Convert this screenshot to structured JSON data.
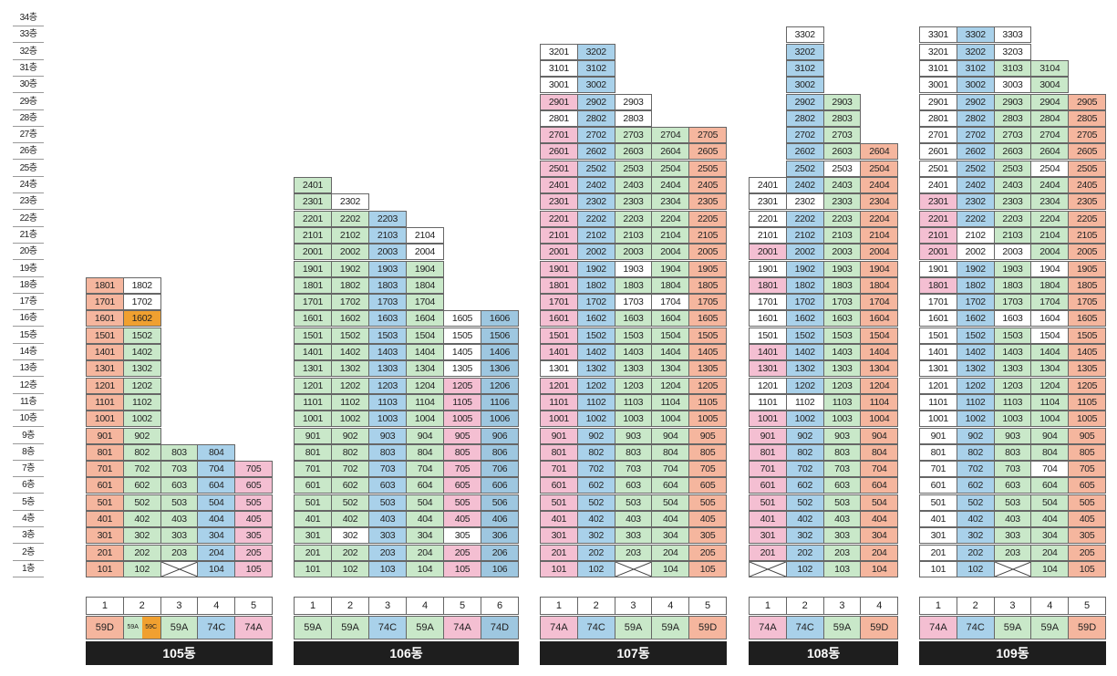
{
  "colors": {
    "59A": "#c9e8c9",
    "59C": "#f0a030",
    "59D": "#f5b69e",
    "74A": "#f4bfd2",
    "74C": "#a9d1ea",
    "empty": "#ffffff"
  },
  "floor_labels": [
    "34층",
    "33층",
    "32층",
    "31층",
    "30층",
    "29층",
    "28층",
    "27층",
    "26층",
    "25층",
    "24층",
    "23층",
    "22층",
    "21층",
    "20층",
    "19층",
    "18층",
    "17층",
    "16층",
    "15층",
    "14층",
    "13층",
    "12층",
    "11층",
    "10층",
    "9층",
    "8층",
    "7층",
    "6층",
    "5층",
    "4층",
    "3층",
    "2층",
    "1층"
  ],
  "buildings": [
    {
      "name": "105동",
      "lines": [
        "1",
        "2",
        "3",
        "4",
        "5"
      ],
      "types": [
        "59D",
        [
          "59A",
          "59C"
        ],
        "59A",
        "74C",
        "74A"
      ],
      "top": [
        18,
        18,
        8,
        8,
        7
      ],
      "empty_ground": [
        3
      ],
      "overrides": {
        "1602": "59C"
      },
      "blank": [
        "1702",
        "1802"
      ]
    },
    {
      "name": "106동",
      "lines": [
        "1",
        "2",
        "3",
        "4",
        "5",
        "6"
      ],
      "types": [
        "59A",
        "59A",
        "74C",
        "59A",
        "74A",
        "74D"
      ],
      "top": [
        24,
        23,
        22,
        21,
        16,
        16
      ],
      "empty_ground": [],
      "overrides": {},
      "blank": [
        "2302",
        "2104",
        "2004",
        "302",
        "305",
        "1605",
        "1505",
        "1405",
        "1305"
      ]
    },
    {
      "name": "107동",
      "lines": [
        "1",
        "2",
        "3",
        "4",
        "5"
      ],
      "types": [
        "74A",
        "74C",
        "59A",
        "59A",
        "59D"
      ],
      "top": [
        32,
        32,
        29,
        27,
        27
      ],
      "empty_ground": [
        3
      ],
      "overrides": {
        "2901": "74A",
        "2501": "74A",
        "1501": "74A",
        "1101": "74A"
      },
      "blank": [
        "3201",
        "3101",
        "3001",
        "2801",
        "2903",
        "2803",
        "1903",
        "1703",
        "1704",
        "1301"
      ]
    },
    {
      "name": "108동",
      "lines": [
        "1",
        "2",
        "3",
        "4"
      ],
      "types": [
        "74A",
        "74C",
        "59A",
        "59D"
      ],
      "top": [
        24,
        33,
        29,
        26
      ],
      "empty_ground": [
        1
      ],
      "overrides": {
        "2001": "74A",
        "1801": "74A",
        "1401": "74A",
        "1301": "74A",
        "1001": "74A"
      },
      "blank": [
        "3302",
        "2401",
        "2301",
        "2302",
        "2201",
        "2101",
        "1901",
        "1701",
        "1601",
        "1501",
        "1201",
        "1101",
        "1102",
        "2503"
      ]
    },
    {
      "name": "109동",
      "lines": [
        "1",
        "2",
        "3",
        "4",
        "5"
      ],
      "types": [
        "74A",
        "74C",
        "59A",
        "59A",
        "59D"
      ],
      "top": [
        33,
        33,
        33,
        31,
        29
      ],
      "empty_ground": [
        3
      ],
      "overrides": {
        "2301": "74A",
        "2101": "74A",
        "2001": "74A"
      },
      "blank": [
        "3301",
        "3201",
        "3101",
        "3001",
        "2901",
        "2801",
        "2701",
        "2601",
        "2501",
        "2401",
        "1901",
        "1701",
        "1601",
        "1501",
        "1401",
        "1301",
        "1201",
        "1101",
        "1001",
        "901",
        "801",
        "701",
        "601",
        "501",
        "401",
        "301",
        "201",
        "101",
        "1603",
        "2102",
        "2002",
        "2003",
        "2504",
        "1904",
        "1604",
        "1504",
        "704",
        "3303",
        "3203",
        "3003"
      ]
    }
  ]
}
